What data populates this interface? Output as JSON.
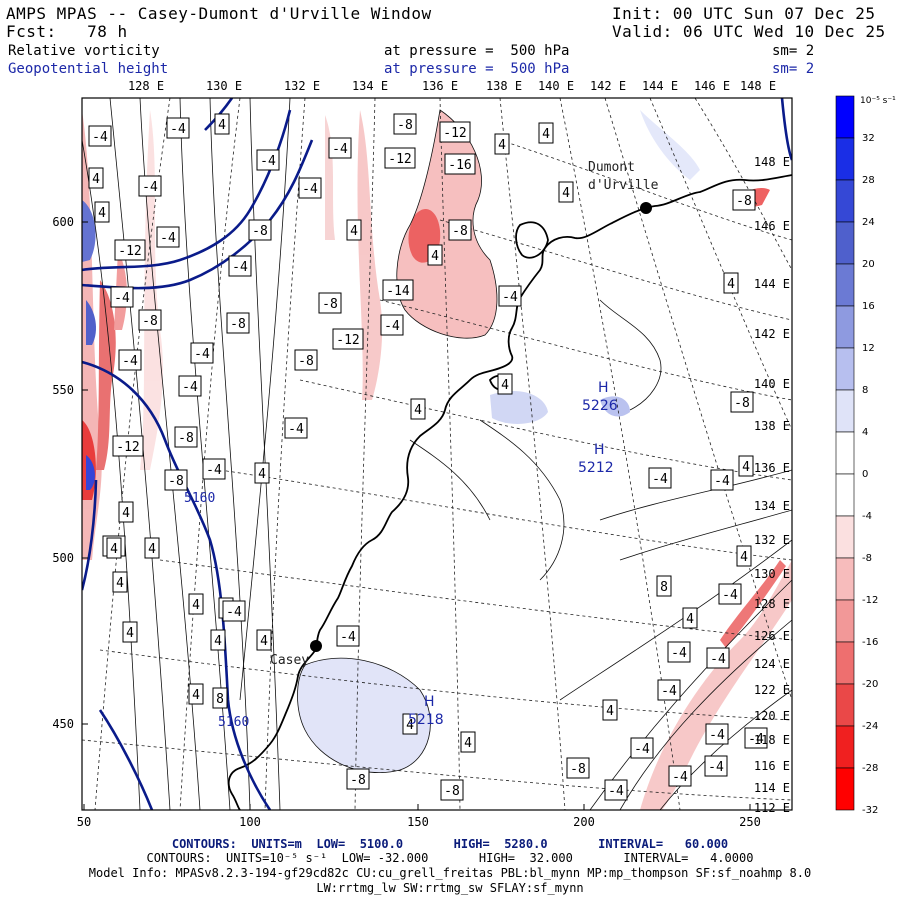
{
  "header": {
    "title": "AMPS MPAS -- Casey-Dumont d'Urville Window",
    "init": "Init: 00 UTC Sun 07 Dec 25",
    "forecast": "Fcst:   78 h",
    "valid": "Valid: 06 UTC Wed 10 Dec 25",
    "field1": "Relative vorticity",
    "field1_level": "at pressure =  500 hPa",
    "field1_sm": "sm= 2",
    "field2": "Geopotential height",
    "field2_level": "at pressure =  500 hPa",
    "field2_sm": "sm= 2"
  },
  "map": {
    "top_lon_labels": [
      "128 E",
      "130 E",
      "132 E",
      "134 E",
      "136 E",
      "138 E",
      "140 E",
      "142 E",
      "144 E",
      "146 E",
      "148 E"
    ],
    "right_lat_labels": [
      "148 E",
      "146 E",
      "144 E",
      "142 E",
      "140 E",
      "138 E",
      "136 E",
      "134 E",
      "132 E",
      "130 E",
      "128 E",
      "126 E",
      "124 E",
      "122 E",
      "120 E",
      "118 E",
      "116 E",
      "114 E",
      "112 E"
    ],
    "x_ticks": [
      "50",
      "100",
      "150",
      "200",
      "250"
    ],
    "y_ticks": [
      "600",
      "550",
      "500",
      "450"
    ],
    "stations": [
      {
        "name": "Dumont\nd'Urville"
      },
      {
        "name": "Casey"
      }
    ],
    "height_contour_labels": [
      "5160",
      "5160"
    ],
    "highs": [
      {
        "letter": "H",
        "value": "5212"
      },
      {
        "letter": "H",
        "value": "5218"
      },
      {
        "letter": "H",
        "value": "5226"
      }
    ],
    "vorticity_labels": [
      "4",
      "-4",
      "4",
      "4",
      "-8",
      "-12",
      "4",
      "-4",
      "-4",
      "-12",
      "-16",
      "-4",
      "-4",
      "4",
      "-12",
      "4",
      "4",
      "-8",
      "-4",
      "-8",
      "-14",
      "-4",
      "-8",
      "-8",
      "-12",
      "-8",
      "-4",
      "-4",
      "-4",
      "-8",
      "-4",
      "-4",
      "-4",
      "4",
      "4",
      "-4",
      "4",
      "-8",
      "-12",
      "-4",
      "-8",
      "4",
      "-4",
      "4",
      "4",
      "4",
      "4",
      "4",
      "4",
      "4",
      "4",
      "-4",
      "-8",
      "4",
      "-8",
      "4",
      "-8",
      "-4",
      "-4",
      "4",
      "-4",
      "-4",
      "-4",
      "-4",
      "-4",
      "-4",
      "8",
      "4",
      "-4",
      "-4",
      "4",
      "-4",
      "-4",
      "-8",
      "4",
      "4",
      "4",
      "-8",
      "4",
      "4",
      "8",
      "-4",
      "-4"
    ]
  },
  "colorbar": {
    "unit": "10⁻⁵ s⁻¹",
    "labels": [
      "32",
      "28",
      "24",
      "20",
      "16",
      "12",
      "8",
      "4",
      "0",
      "-4",
      "-8",
      "-12",
      "-16",
      "-20",
      "-24",
      "-28",
      "-32"
    ],
    "colors": [
      "#0000ff",
      "#1a2ee6",
      "#3548d6",
      "#4f60cc",
      "#6b7ad4",
      "#8e9ae0",
      "#b7bfef",
      "#dfe3f8",
      "#ffffff",
      "#ffffff",
      "#fbe0e0",
      "#f7bcbc",
      "#f29898",
      "#ee6f6f",
      "#ea4848",
      "#f02020",
      "#ff0000"
    ]
  },
  "footer": {
    "line1_label": "CONTOURS:",
    "line1": "UNITS=m  LOW=  5100.0       HIGH=  5280.0       INTERVAL=   60.000",
    "line2_label": "CONTOURS:",
    "line2": "UNITS=10⁻⁵ s⁻¹  LOW= -32.000       HIGH=  32.000       INTERVAL=   4.0000",
    "line3": "Model Info: MPASv8.2.3-194-gf29cd82c CU:cu_grell_freitas PBL:bl_mynn MP:mp_thompson SF:sf_noahmp 8.0",
    "line4": "LW:rrtmg_lw SW:rrtmg_sw SFLAY:sf_mynn"
  }
}
